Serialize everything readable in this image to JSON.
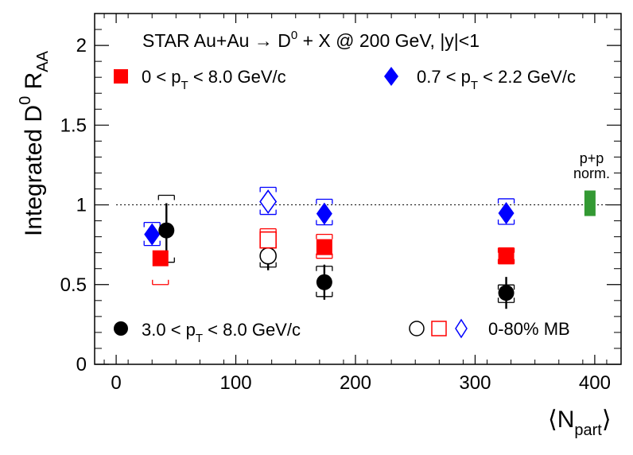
{
  "chart_data": {
    "type": "scatter",
    "title": "STAR Au+Au → D0 + X @ 200 GeV,  |y|<1",
    "title_parts": {
      "a": "STAR Au+Au ",
      "arrow": "→",
      "b": " D",
      "sup": "0",
      "c": " + X @ 200 GeV,  |y|<1"
    },
    "xlabel": "⟨Npart⟩",
    "xlabel_parts": {
      "open": "⟨",
      "main": "N",
      "sub": "part",
      "close": "⟩"
    },
    "ylabel": "Integrated D0 RAA",
    "ylabel_parts": {
      "a": "Integrated D",
      "sup": "0",
      "b": " R",
      "sub": "AA"
    },
    "xlim": [
      -18,
      422
    ],
    "ylim": [
      0,
      2.2
    ],
    "x_ticks": [
      0,
      100,
      200,
      300,
      400
    ],
    "x_tick_labels": [
      "0",
      "100",
      "200",
      "300",
      "400"
    ],
    "y_ticks": [
      0,
      0.5,
      1,
      1.5,
      2
    ],
    "y_tick_labels": [
      "0",
      "0.5",
      "1",
      "1.5",
      "2"
    ],
    "reference_line": {
      "y": 1,
      "style": "dotted"
    },
    "series": [
      {
        "legend": {
          "a": "0 < p",
          "sub": "T",
          "b": " < 8.0 GeV/c"
        },
        "color": "#ff0000",
        "marker": "square",
        "filled": true,
        "points": [
          {
            "x": 37,
            "y": 0.665,
            "stat_err": 0.035,
            "sys_lo": 0.165,
            "sys_hi": 0.0
          },
          {
            "x": 174,
            "y": 0.735,
            "stat_err": 0.045,
            "sys_lo": 0.07,
            "sys_hi": 0.08
          },
          {
            "x": 326,
            "y": 0.68,
            "stat_err": 0.045,
            "sys_lo": 0.05,
            "sys_hi": 0.05
          }
        ]
      },
      {
        "legend": {
          "a": "0.7 < p",
          "sub": "T",
          "b": " < 2.2 GeV/c"
        },
        "color": "#0000ff",
        "marker": "diamond",
        "filled": true,
        "points": [
          {
            "x": 30,
            "y": 0.815,
            "stat_err": 0.04,
            "sys_lo": 0.07,
            "sys_hi": 0.075
          },
          {
            "x": 174,
            "y": 0.945,
            "stat_err": 0.04,
            "sys_lo": 0.07,
            "sys_hi": 0.09
          },
          {
            "x": 326,
            "y": 0.948,
            "stat_err": 0.04,
            "sys_lo": 0.07,
            "sys_hi": 0.09
          }
        ]
      },
      {
        "legend": {
          "a": "3.0 < p",
          "sub": "T",
          "b": " < 8.0 GeV/c"
        },
        "color": "#000000",
        "marker": "circle",
        "filled": true,
        "points": [
          {
            "x": 42,
            "y": 0.84,
            "stat_err": 0.17,
            "sys_lo": 0.2,
            "sys_hi": 0.22
          },
          {
            "x": 174,
            "y": 0.515,
            "stat_err": 0.11,
            "sys_lo": 0.09,
            "sys_hi": 0.1
          },
          {
            "x": 326,
            "y": 0.448,
            "stat_err": 0.1,
            "sys_lo": 0.06,
            "sys_hi": 0.05
          }
        ]
      },
      {
        "name": "0-80% MB",
        "color": "#000000",
        "marker": "circle",
        "filled": false,
        "points": [
          {
            "x": 127,
            "y": 0.68,
            "stat_err": 0.09,
            "sys_lo": 0.07,
            "sys_hi": 0.08
          }
        ]
      },
      {
        "name": "0-80% MB",
        "color": "#ff0000",
        "marker": "square",
        "filled": false,
        "points": [
          {
            "x": 127,
            "y": 0.78,
            "stat_err": 0.03,
            "sys_lo": 0.05,
            "sys_hi": 0.07
          }
        ]
      },
      {
        "name": "0-80% MB",
        "color": "#0000ff",
        "marker": "diamond",
        "filled": false,
        "points": [
          {
            "x": 127,
            "y": 1.02,
            "stat_err": 0.04,
            "sys_lo": 0.08,
            "sys_hi": 0.09
          }
        ]
      }
    ],
    "normalization_box": {
      "label_line1": "p+p",
      "label_line2": "norm.",
      "x": 396,
      "y_low": 0.93,
      "y_high": 1.09,
      "color": "#339933"
    },
    "mb_legend_label": "0-80% MB",
    "legend_placement": "inside top and bottom of plot",
    "grid": false
  }
}
